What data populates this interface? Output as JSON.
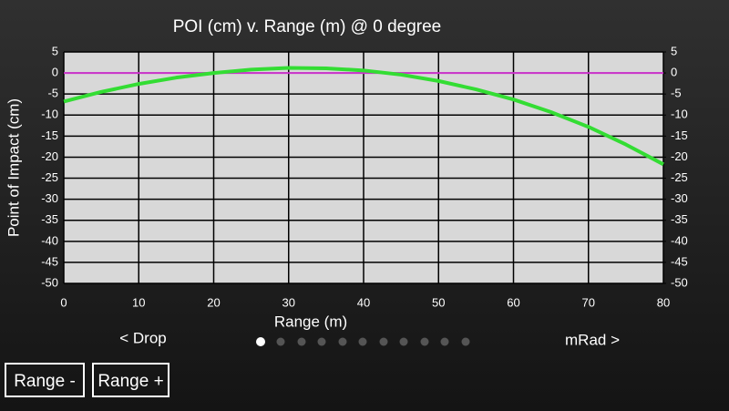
{
  "chart_data": {
    "type": "line",
    "title": "POI (cm) v. Range (m) @ 0 degree",
    "x_label": "Range (m)",
    "y_label": "Point of Impact (cm)",
    "x": [
      0,
      5,
      10,
      15,
      20,
      25,
      30,
      35,
      40,
      45,
      50,
      55,
      60,
      65,
      70,
      75,
      80
    ],
    "series": [
      {
        "name": "POI",
        "color": "#33dd33",
        "values": [
          -6.8,
          -4.5,
          -2.6,
          -1.1,
          0,
          0.8,
          1.2,
          1.1,
          0.6,
          -0.4,
          -1.9,
          -3.9,
          -6.3,
          -9.3,
          -12.8,
          -17,
          -21.7
        ]
      }
    ],
    "reference_line": {
      "value": 0,
      "color": "#cc33cc"
    },
    "xlim": [
      0,
      80
    ],
    "xticks": [
      0,
      10,
      20,
      30,
      40,
      50,
      60,
      70,
      80
    ],
    "ylim": [
      -50,
      5
    ],
    "yticks": [
      5,
      0,
      -5,
      -10,
      -15,
      -20,
      -25,
      -30,
      -35,
      -40,
      -45,
      -50
    ],
    "y2lim": [
      -50,
      5
    ],
    "y2ticks": [
      5,
      0,
      -5,
      -10,
      -15,
      -20,
      -25,
      -30,
      -35,
      -40,
      -45,
      -50
    ],
    "grid": true
  },
  "nav": {
    "prev": "< Drop",
    "next": "mRad >"
  },
  "buttons": [
    "Range -",
    "Range +"
  ]
}
